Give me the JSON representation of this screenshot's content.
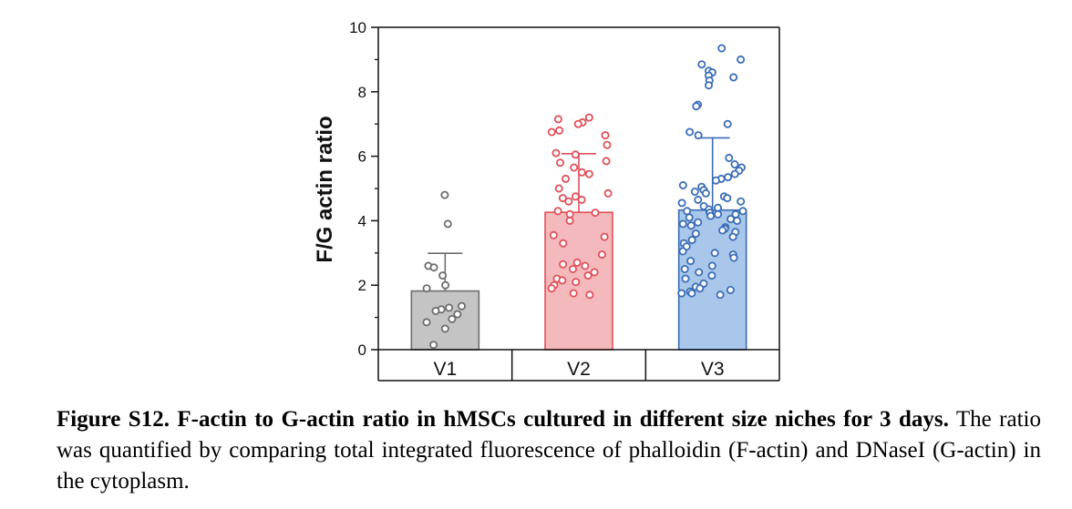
{
  "chart_data": {
    "type": "bar",
    "title": "",
    "xlabel": "",
    "ylabel": "F/G actin ratio",
    "ylim": [
      0,
      10
    ],
    "yticks": [
      0,
      2,
      4,
      6,
      8,
      10
    ],
    "grid": false,
    "categories": [
      "V1",
      "V2",
      "V3"
    ],
    "values": [
      1.82,
      4.26,
      4.33
    ],
    "errors": [
      1.17,
      1.82,
      2.24
    ],
    "colors": {
      "V1": {
        "fill": "#c4c4c4",
        "edge": "#6d6d6d"
      },
      "V2": {
        "fill": "#f4b9bc",
        "edge": "#e0505a"
      },
      "V3": {
        "fill": "#a9c7ea",
        "edge": "#3a6db6"
      }
    },
    "points": {
      "V1": [
        4.8,
        3.9,
        2.6,
        2.55,
        2.3,
        2.0,
        1.9,
        1.35,
        1.3,
        1.25,
        1.2,
        1.1,
        0.95,
        0.85,
        0.65,
        0.15
      ],
      "V2": [
        7.2,
        7.15,
        7.05,
        7.0,
        6.8,
        6.75,
        6.65,
        6.35,
        6.1,
        6.05,
        5.85,
        5.8,
        5.65,
        5.5,
        5.45,
        5.3,
        5.0,
        4.85,
        4.75,
        4.7,
        4.65,
        4.6,
        4.3,
        4.25,
        4.2,
        4.0,
        3.55,
        3.5,
        3.3,
        2.95,
        2.7,
        2.65,
        2.6,
        2.5,
        2.4,
        2.3,
        2.2,
        2.15,
        2.1,
        2.0,
        1.9,
        1.75,
        1.7
      ],
      "V3": [
        9.35,
        9.0,
        8.85,
        8.65,
        8.6,
        8.5,
        8.45,
        8.35,
        8.2,
        7.6,
        7.55,
        7.0,
        6.75,
        6.65,
        5.95,
        5.75,
        5.65,
        5.55,
        5.45,
        5.35,
        5.3,
        5.25,
        5.1,
        5.05,
        4.95,
        4.9,
        4.85,
        4.75,
        4.7,
        4.65,
        4.6,
        4.55,
        4.45,
        4.4,
        4.35,
        4.3,
        4.3,
        4.25,
        4.2,
        4.2,
        4.15,
        4.1,
        4.05,
        4.0,
        3.95,
        3.9,
        3.85,
        3.8,
        3.75,
        3.7,
        3.65,
        3.6,
        3.5,
        3.4,
        3.3,
        3.2,
        3.05,
        3.0,
        2.95,
        2.85,
        2.75,
        2.6,
        2.5,
        2.4,
        2.3,
        2.2,
        2.05,
        1.95,
        1.9,
        1.85,
        1.8,
        1.75,
        1.75,
        1.7
      ]
    }
  },
  "caption": {
    "bold": "Figure S12. F-actin to G-actin ratio in hMSCs cultured in different size niches for 3 days.",
    "text": " The ratio was quantified by comparing total integrated fluorescence of phalloidin (F-actin) and DNaseI (G-actin) in the cytoplasm."
  }
}
